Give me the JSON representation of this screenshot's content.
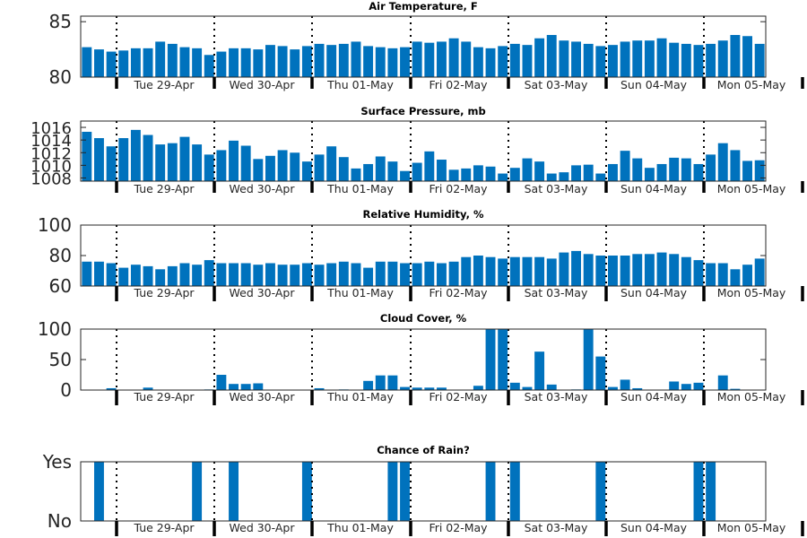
{
  "chart_data": [
    {
      "type": "bar",
      "title": "Air Temperature, F",
      "ylim": [
        80,
        85.5
      ],
      "yticks": [
        80,
        85
      ],
      "xticklabels": [
        "Tue 29-Apr",
        "Wed 30-Apr",
        "Thu 01-May",
        "Fri 02-May",
        "Sat 03-May",
        "Sun 04-May",
        "Mon 05-May"
      ],
      "values": [
        82.7,
        82.5,
        82.3,
        82.4,
        82.6,
        82.6,
        83.2,
        83.0,
        82.7,
        82.6,
        82.0,
        82.3,
        82.6,
        82.6,
        82.5,
        82.9,
        82.8,
        82.5,
        82.8,
        83.0,
        82.9,
        83.0,
        83.2,
        82.8,
        82.7,
        82.6,
        82.7,
        83.2,
        83.1,
        83.2,
        83.5,
        83.2,
        82.7,
        82.6,
        82.8,
        83.0,
        82.9,
        83.5,
        83.8,
        83.3,
        83.2,
        83.0,
        82.8,
        82.9,
        83.2,
        83.3,
        83.3,
        83.5,
        83.1,
        83.0,
        82.9,
        83.0,
        83.3,
        83.8,
        83.7,
        83.0
      ]
    },
    {
      "type": "bar",
      "title": "Surface Pressure, mb",
      "ylim": [
        1007.5,
        1017
      ],
      "yticks": [
        1008,
        1010,
        1012,
        1014,
        1016
      ],
      "xticklabels": [
        "Tue 29-Apr",
        "Wed 30-Apr",
        "Thu 01-May",
        "Fri 02-May",
        "Sat 03-May",
        "Sun 04-May",
        "Mon 05-May"
      ],
      "values": [
        1015.3,
        1014.3,
        1013.0,
        1014.3,
        1015.6,
        1014.8,
        1013.3,
        1013.5,
        1014.5,
        1013.3,
        1011.7,
        1012.4,
        1013.9,
        1013.1,
        1011.0,
        1011.5,
        1012.4,
        1012.0,
        1010.6,
        1011.7,
        1013.0,
        1011.3,
        1009.5,
        1010.2,
        1011.4,
        1010.6,
        1009.1,
        1010.4,
        1012.2,
        1010.9,
        1009.3,
        1009.5,
        1010.0,
        1009.8,
        1008.7,
        1009.6,
        1011.1,
        1010.6,
        1008.7,
        1008.9,
        1010.0,
        1010.1,
        1008.7,
        1010.2,
        1012.3,
        1011.1,
        1009.6,
        1010.2,
        1011.2,
        1011.1,
        1010.2,
        1011.7,
        1013.5,
        1012.4,
        1010.7,
        1010.8
      ]
    },
    {
      "type": "bar",
      "title": "Relative Humidity, %",
      "ylim": [
        60,
        100
      ],
      "yticks": [
        60,
        80,
        100
      ],
      "xticklabels": [
        "Tue 29-Apr",
        "Wed 30-Apr",
        "Thu 01-May",
        "Fri 02-May",
        "Sat 03-May",
        "Sun 04-May",
        "Mon 05-May"
      ],
      "values": [
        76,
        76,
        75,
        72,
        74,
        73,
        71,
        73,
        75,
        74,
        77,
        75,
        75,
        75,
        74,
        75,
        74,
        74,
        75,
        74,
        75,
        76,
        75,
        72,
        76,
        76,
        75,
        75,
        76,
        75,
        76,
        79,
        80,
        79,
        78,
        79,
        79,
        79,
        78,
        82,
        83,
        81,
        80,
        80,
        80,
        81,
        81,
        82,
        81,
        79,
        77,
        75,
        75,
        71,
        74,
        78
      ]
    },
    {
      "type": "bar",
      "title": "Cloud Cover, %",
      "ylim": [
        0,
        100
      ],
      "yticks": [
        0,
        50,
        100
      ],
      "xticklabels": [
        "Tue 29-Apr",
        "Wed 30-Apr",
        "Thu 01-May",
        "Fri 02-May",
        "Sat 03-May",
        "Sun 04-May",
        "Mon 05-May"
      ],
      "values": [
        0,
        0,
        3,
        0,
        0,
        4,
        0,
        0,
        0,
        0,
        1,
        25,
        10,
        10,
        11,
        0,
        0,
        0,
        0,
        3,
        0,
        1,
        0,
        15,
        24,
        24,
        5,
        4,
        4,
        4,
        0,
        0,
        7,
        100,
        100,
        12,
        5,
        63,
        9,
        0,
        1,
        100,
        55,
        5,
        17,
        3,
        0,
        0,
        14,
        10,
        12,
        0,
        24,
        2,
        0,
        0
      ]
    },
    {
      "type": "bar",
      "title": "Chance of Rain?",
      "yticklabels": [
        "No",
        "Yes"
      ],
      "xticklabels": [
        "Tue 29-Apr",
        "Wed 30-Apr",
        "Thu 01-May",
        "Fri 02-May",
        "Sat 03-May",
        "Sun 04-May",
        "Mon 05-May"
      ],
      "values": [
        0,
        1,
        0,
        0,
        0,
        0,
        0,
        0,
        0,
        1,
        0,
        0,
        1,
        0,
        0,
        0,
        0,
        0,
        1,
        0,
        0,
        0,
        0,
        0,
        0,
        1,
        1,
        0,
        0,
        0,
        0,
        0,
        0,
        1,
        0,
        1,
        0,
        0,
        0,
        0,
        0,
        0,
        1,
        0,
        0,
        0,
        0,
        0,
        0,
        0,
        1,
        1,
        0,
        0,
        0,
        0
      ]
    }
  ]
}
